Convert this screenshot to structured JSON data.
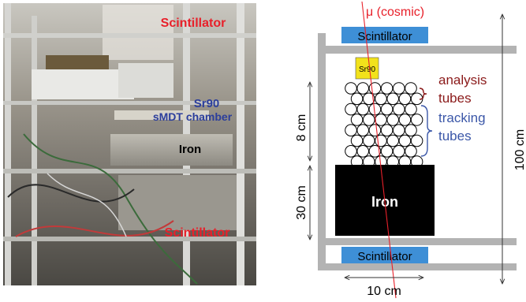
{
  "photo": {
    "labels": {
      "scintillator_top": "Scintillator",
      "sr90": "Sr90",
      "smdt_chamber": "sMDT chamber",
      "iron": "Iron",
      "scintillator_bottom": "Scintillator"
    }
  },
  "diagram": {
    "muon_label": "μ (cosmic)",
    "scintillator_top": "Scintillator",
    "scintillator_bottom": "Scintillator",
    "sr90": "Sr90",
    "iron": "Iron",
    "analysis_tubes": [
      "analysis",
      "tubes"
    ],
    "tracking_tubes": [
      "tracking",
      "tubes"
    ],
    "dim_8cm": "8 cm",
    "dim_30cm": "30 cm",
    "dim_100cm": "100 cm",
    "dim_10cm": "10 cm",
    "colors": {
      "muon": "#e8202a",
      "scintillator": "#3e8fd6",
      "sr90": "#f2e21b",
      "frame": "#b3b3b3",
      "analysis": "#8b1a1a",
      "tracking": "#3b57a8",
      "iron": "#000000",
      "photo_red": "#e8202a",
      "photo_blue": "#2b3e9c"
    }
  }
}
